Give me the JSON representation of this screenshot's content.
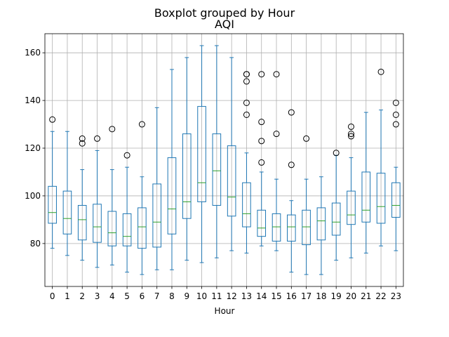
{
  "chart_data": {
    "type": "boxplot",
    "suptitle": "Boxplot grouped by Hour",
    "title": "AQI",
    "xlabel": "Hour",
    "ylabel": "",
    "ylim": [
      62,
      168
    ],
    "yticks": [
      80,
      100,
      120,
      140,
      160
    ],
    "grid": true,
    "colors": {
      "box": "#1f77b4",
      "median": "#2ca02c",
      "flier": "#000000",
      "grid": "#b0b0b0"
    },
    "categories": [
      "0",
      "1",
      "2",
      "3",
      "4",
      "5",
      "6",
      "7",
      "8",
      "9",
      "10",
      "11",
      "12",
      "13",
      "14",
      "15",
      "16",
      "17",
      "18",
      "19",
      "20",
      "21",
      "22",
      "23"
    ],
    "boxes": [
      {
        "wlo": 78,
        "q1": 88.5,
        "med": 93,
        "q3": 104,
        "whi": 127,
        "fliers": [
          132
        ]
      },
      {
        "wlo": 75,
        "q1": 84,
        "med": 90.5,
        "q3": 102,
        "whi": 127,
        "fliers": []
      },
      {
        "wlo": 73,
        "q1": 81.5,
        "med": 90,
        "q3": 96,
        "whi": 111,
        "fliers": [
          122,
          124
        ]
      },
      {
        "wlo": 70,
        "q1": 80.5,
        "med": 87,
        "q3": 96.5,
        "whi": 119,
        "fliers": [
          124
        ]
      },
      {
        "wlo": 71,
        "q1": 79,
        "med": 84.5,
        "q3": 93.5,
        "whi": 111,
        "fliers": [
          128
        ]
      },
      {
        "wlo": 68,
        "q1": 79,
        "med": 83,
        "q3": 92.5,
        "whi": 112,
        "fliers": [
          117
        ]
      },
      {
        "wlo": 67,
        "q1": 78,
        "med": 87,
        "q3": 95,
        "whi": 108,
        "fliers": [
          130
        ]
      },
      {
        "wlo": 69,
        "q1": 78.5,
        "med": 89,
        "q3": 105,
        "whi": 137,
        "fliers": []
      },
      {
        "wlo": 69,
        "q1": 84,
        "med": 94.5,
        "q3": 116,
        "whi": 153,
        "fliers": []
      },
      {
        "wlo": 73,
        "q1": 90.5,
        "med": 97.5,
        "q3": 126,
        "whi": 158,
        "fliers": []
      },
      {
        "wlo": 72,
        "q1": 97.5,
        "med": 105.5,
        "q3": 137.5,
        "whi": 163,
        "fliers": []
      },
      {
        "wlo": 74,
        "q1": 96,
        "med": 110.5,
        "q3": 126,
        "whi": 163,
        "fliers": []
      },
      {
        "wlo": 77,
        "q1": 91.5,
        "med": 99.5,
        "q3": 121,
        "whi": 158,
        "fliers": []
      },
      {
        "wlo": 76,
        "q1": 87,
        "med": 92.5,
        "q3": 105.5,
        "whi": 118,
        "fliers": [
          134,
          139,
          148,
          151,
          151
        ]
      },
      {
        "wlo": 79,
        "q1": 83,
        "med": 86.5,
        "q3": 94,
        "whi": 110,
        "fliers": [
          114,
          123,
          131,
          151
        ]
      },
      {
        "wlo": 77,
        "q1": 81,
        "med": 87,
        "q3": 92.5,
        "whi": 107,
        "fliers": [
          126,
          151
        ]
      },
      {
        "wlo": 68,
        "q1": 81,
        "med": 87,
        "q3": 92,
        "whi": 98,
        "fliers": [
          113,
          135
        ]
      },
      {
        "wlo": 67,
        "q1": 79.5,
        "med": 87,
        "q3": 94,
        "whi": 107,
        "fliers": [
          124
        ]
      },
      {
        "wlo": 67,
        "q1": 81.5,
        "med": 89.5,
        "q3": 95,
        "whi": 108,
        "fliers": []
      },
      {
        "wlo": 73,
        "q1": 83.5,
        "med": 89,
        "q3": 97,
        "whi": 117,
        "fliers": [
          118
        ]
      },
      {
        "wlo": 74,
        "q1": 88,
        "med": 92,
        "q3": 102,
        "whi": 116,
        "fliers": [
          125,
          126,
          129
        ]
      },
      {
        "wlo": 76,
        "q1": 89,
        "med": 94,
        "q3": 110,
        "whi": 135,
        "fliers": []
      },
      {
        "wlo": 79,
        "q1": 88.5,
        "med": 95.5,
        "q3": 109.5,
        "whi": 136,
        "fliers": [
          152
        ]
      },
      {
        "wlo": 77,
        "q1": 91,
        "med": 96,
        "q3": 105.5,
        "whi": 112,
        "fliers": [
          130,
          134,
          139
        ]
      }
    ]
  }
}
